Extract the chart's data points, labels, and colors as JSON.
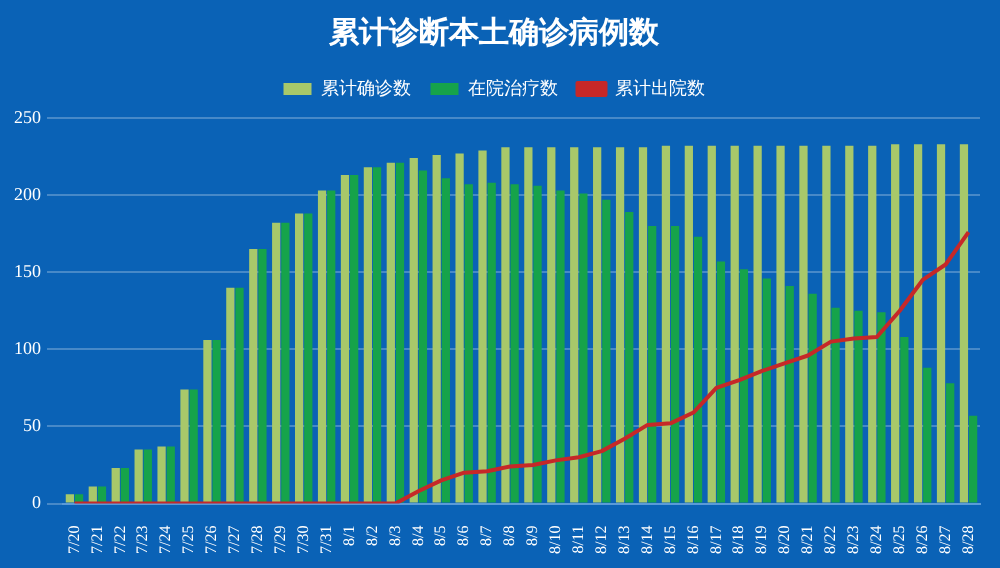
{
  "chart_data": {
    "type": "bar",
    "title": "累计诊断本土确诊病例数",
    "categories": [
      "7/20",
      "7/21",
      "7/22",
      "7/23",
      "7/24",
      "7/25",
      "7/26",
      "7/27",
      "7/28",
      "7/29",
      "7/30",
      "7/31",
      "8/1",
      "8/2",
      "8/3",
      "8/4",
      "8/5",
      "8/6",
      "8/7",
      "8/8",
      "8/9",
      "8/10",
      "8/11",
      "8/12",
      "8/13",
      "8/14",
      "8/15",
      "8/16",
      "8/17",
      "8/18",
      "8/19",
      "8/20",
      "8/21",
      "8/22",
      "8/23",
      "8/24",
      "8/25",
      "8/26",
      "8/27",
      "8/28"
    ],
    "series": [
      {
        "name": "累计确诊数",
        "color": "#a8c86a",
        "values": [
          6,
          11,
          23,
          35,
          37,
          74,
          106,
          140,
          165,
          182,
          188,
          203,
          213,
          218,
          221,
          224,
          226,
          227,
          229,
          231,
          231,
          231,
          231,
          231,
          231,
          231,
          232,
          232,
          232,
          232,
          232,
          232,
          232,
          232,
          232,
          232,
          233,
          233,
          233,
          233
        ]
      },
      {
        "name": "在院治疗数",
        "color": "#16a34a",
        "values": [
          6,
          11,
          23,
          35,
          37,
          74,
          106,
          140,
          165,
          182,
          188,
          203,
          213,
          218,
          221,
          216,
          211,
          207,
          208,
          207,
          206,
          203,
          201,
          197,
          189,
          180,
          180,
          173,
          157,
          152,
          146,
          141,
          136,
          127,
          125,
          124,
          108,
          88,
          78,
          57
        ]
      },
      {
        "name": "累计出院数",
        "type": "line",
        "color": "#c62828",
        "values": [
          0,
          0,
          0,
          0,
          0,
          0,
          0,
          0,
          0,
          0,
          0,
          0,
          0,
          0,
          0,
          8,
          15,
          20,
          21,
          24,
          25,
          28,
          30,
          34,
          42,
          51,
          52,
          59,
          75,
          80,
          86,
          91,
          96,
          105,
          107,
          108,
          125,
          145,
          155,
          176
        ]
      }
    ],
    "ylim": [
      0,
      250
    ],
    "yticks": [
      0,
      50,
      100,
      150,
      200,
      250
    ],
    "grid": "y",
    "legend": "top"
  }
}
